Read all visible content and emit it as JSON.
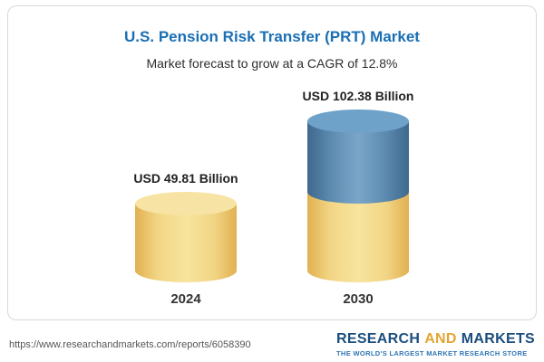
{
  "header": {
    "title": "U.S. Pension Risk Transfer (PRT) Market",
    "subtitle": "Market forecast to grow at a CAGR of 12.8%"
  },
  "chart_data": {
    "type": "bar",
    "variant": "cylinder-column",
    "title": "U.S. Pension Risk Transfer (PRT) Market",
    "subtitle": "Market forecast to grow at a CAGR of 12.8%",
    "unit": "USD Billion",
    "categories": [
      "2024",
      "2030"
    ],
    "values": [
      49.81,
      102.38
    ],
    "value_labels": [
      "USD 49.81 Billion",
      "USD 102.38 Billion"
    ],
    "cagr_percent": 12.8,
    "ylim": [
      0,
      110
    ],
    "legend_position": "none",
    "grid": false,
    "colors": {
      "base_gold": "#F3CE6E",
      "growth_blue": "#4E7EA6",
      "title_blue": "#1A6FB5"
    },
    "stacking_note": "2030 column: gold base equal to 2024 value with blue growth segment on top"
  },
  "footer": {
    "url": "https://www.researchandmarkets.com/reports/6058390",
    "brand_research": "RESEARCH",
    "brand_and": "AND",
    "brand_markets": "MARKETS",
    "tagline": "THE WORLD'S LARGEST MARKET RESEARCH STORE"
  }
}
